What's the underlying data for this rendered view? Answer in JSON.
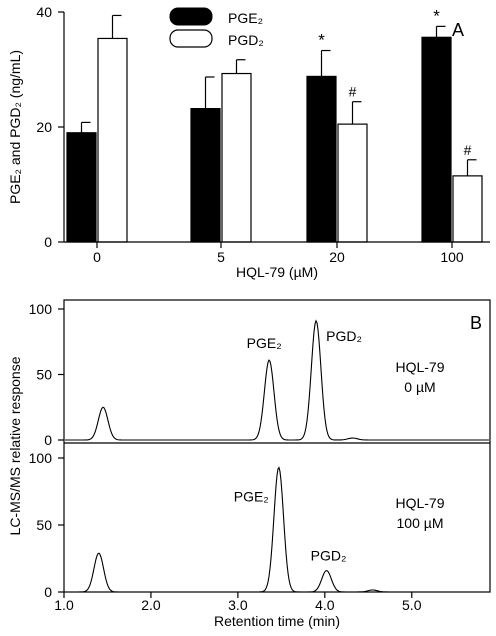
{
  "chart_data": [
    {
      "type": "bar",
      "panel_label": "A",
      "categories": [
        "0",
        "5",
        "20",
        "100"
      ],
      "xlabel": "HQL-79 (µM)",
      "ylabel": "PGE₂ and PGD₂ (ng/mL)",
      "ylim": [
        0,
        40
      ],
      "yticks": [
        "0",
        "20",
        "40"
      ],
      "legend_position": "top-center",
      "series": [
        {
          "name": "PGE₂",
          "color": "#000000",
          "values": [
            19,
            23.2,
            28.8,
            35.6
          ],
          "errors": [
            1.8,
            5.5,
            4.5,
            1.9
          ],
          "markers": [
            "",
            "",
            "*",
            "*"
          ]
        },
        {
          "name": "PGD₂",
          "color": "#ffffff",
          "values": [
            35.4,
            29.3,
            20.5,
            11.5
          ],
          "errors": [
            4.0,
            2.4,
            3.9,
            2.8
          ],
          "markers": [
            "",
            "",
            "#",
            "#"
          ]
        }
      ]
    },
    {
      "type": "line",
      "panel_label": "B",
      "title": "",
      "xlabel": "Retention time (min)",
      "ylabel": "LC-MS/MS relative response",
      "xlim": [
        1.0,
        5.9
      ],
      "xticks": [
        "1.0",
        "2.0",
        "3.0",
        "4.0",
        "5.0"
      ],
      "panels": [
        {
          "ylim": [
            0,
            100
          ],
          "yticks": [
            "0",
            "50",
            "100"
          ],
          "condition": [
            "HQL-79",
            "0 µM"
          ],
          "peaks": [
            {
              "x": 1.45,
              "height": 25,
              "label": ""
            },
            {
              "x": 3.36,
              "height": 61,
              "label": "PGE₂"
            },
            {
              "x": 3.9,
              "height": 91,
              "label": "PGD₂"
            },
            {
              "x": 4.32,
              "height": 1.5,
              "label": ""
            }
          ]
        },
        {
          "ylim": [
            0,
            100
          ],
          "yticks": [
            "0",
            "50",
            "100"
          ],
          "condition": [
            "HQL-79",
            "100 µM"
          ],
          "peaks": [
            {
              "x": 1.4,
              "height": 29,
              "label": ""
            },
            {
              "x": 3.47,
              "height": 93,
              "label": "PGE₂"
            },
            {
              "x": 4.02,
              "height": 16,
              "label": "PGD₂"
            },
            {
              "x": 4.55,
              "height": 1.5,
              "label": ""
            }
          ]
        }
      ]
    }
  ]
}
